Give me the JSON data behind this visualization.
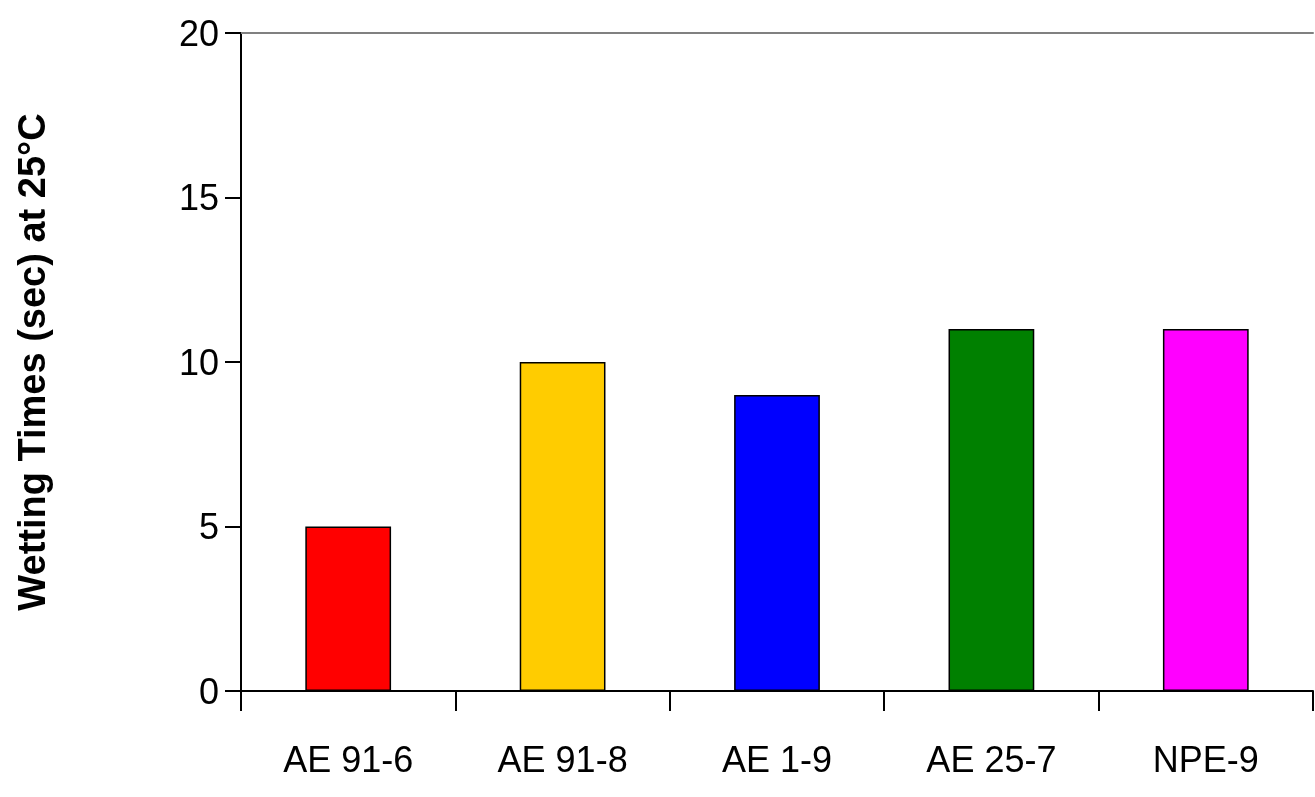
{
  "chart_data": {
    "type": "bar",
    "ylabel": "Wetting Times (sec) at 25°C",
    "categories": [
      "AE 91-6",
      "AE 91-8",
      "AE 1-9",
      "AE 25-7",
      "NPE-9"
    ],
    "values": [
      5,
      10,
      9,
      11,
      11
    ],
    "colors": [
      "#ff0000",
      "#ffcc00",
      "#0000ff",
      "#008000",
      "#ff00ff"
    ],
    "ylim": [
      0,
      20
    ],
    "yticks": [
      0,
      5,
      10,
      15,
      20
    ],
    "grid": false
  }
}
